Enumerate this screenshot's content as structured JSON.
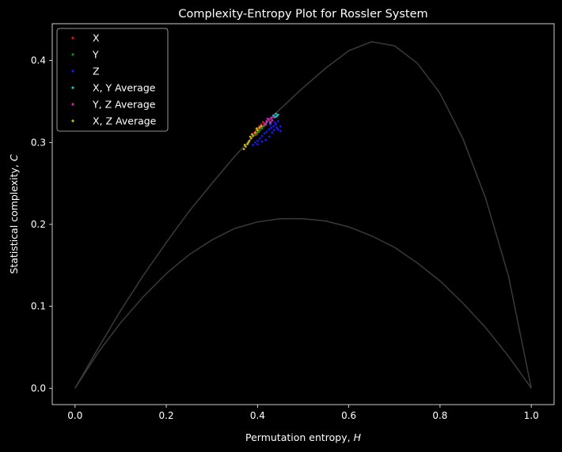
{
  "chart_data": {
    "type": "scatter",
    "title": "Complexity-Entropy Plot for Rossler System",
    "xlabel": "Permutation entropy, H",
    "xlabel_main": "Permutation entropy, ",
    "xlabel_var": "H",
    "ylabel": "Statistical complexity, C",
    "ylabel_main": "Statistical complexity, ",
    "ylabel_var": "C",
    "xlim": [
      -0.05,
      1.05
    ],
    "ylim": [
      -0.02,
      0.445
    ],
    "xticks": [
      0.0,
      0.2,
      0.4,
      0.6,
      0.8,
      1.0
    ],
    "xtick_labels": [
      "0.0",
      "0.2",
      "0.4",
      "0.6",
      "0.8",
      "1.0"
    ],
    "yticks": [
      0.0,
      0.1,
      0.2,
      0.3,
      0.4
    ],
    "ytick_labels": [
      "0.0",
      "0.1",
      "0.2",
      "0.3",
      "0.4"
    ],
    "grid": false,
    "legend_position": "top-left",
    "background": "#000000",
    "bound_color": "#3a3a3a",
    "bounds": {
      "upper": [
        [
          0,
          0
        ],
        [
          0.05,
          0.048
        ],
        [
          0.1,
          0.095
        ],
        [
          0.15,
          0.138
        ],
        [
          0.2,
          0.178
        ],
        [
          0.25,
          0.216
        ],
        [
          0.3,
          0.25
        ],
        [
          0.35,
          0.283
        ],
        [
          0.4,
          0.313
        ],
        [
          0.45,
          0.341
        ],
        [
          0.5,
          0.367
        ],
        [
          0.55,
          0.391
        ],
        [
          0.6,
          0.412
        ],
        [
          0.65,
          0.423
        ],
        [
          0.7,
          0.418
        ],
        [
          0.75,
          0.397
        ],
        [
          0.8,
          0.36
        ],
        [
          0.85,
          0.305
        ],
        [
          0.9,
          0.232
        ],
        [
          0.95,
          0.137
        ],
        [
          1.0,
          0
        ]
      ],
      "lower": [
        [
          0,
          0
        ],
        [
          0.05,
          0.043
        ],
        [
          0.1,
          0.08
        ],
        [
          0.15,
          0.112
        ],
        [
          0.2,
          0.14
        ],
        [
          0.25,
          0.163
        ],
        [
          0.3,
          0.181
        ],
        [
          0.35,
          0.195
        ],
        [
          0.4,
          0.203
        ],
        [
          0.45,
          0.207
        ],
        [
          0.5,
          0.207
        ],
        [
          0.55,
          0.204
        ],
        [
          0.6,
          0.197
        ],
        [
          0.65,
          0.186
        ],
        [
          0.7,
          0.172
        ],
        [
          0.75,
          0.153
        ],
        [
          0.8,
          0.131
        ],
        [
          0.85,
          0.104
        ],
        [
          0.9,
          0.074
        ],
        [
          0.95,
          0.039
        ],
        [
          1.0,
          0
        ]
      ]
    },
    "series": [
      {
        "name": "X",
        "color": "#e01010",
        "points": [
          [
            0.392,
            0.311
          ],
          [
            0.396,
            0.314
          ],
          [
            0.4,
            0.317
          ],
          [
            0.404,
            0.32
          ],
          [
            0.408,
            0.322
          ],
          [
            0.412,
            0.325
          ],
          [
            0.398,
            0.31
          ],
          [
            0.403,
            0.313
          ],
          [
            0.41,
            0.318
          ],
          [
            0.415,
            0.321
          ]
        ]
      },
      {
        "name": "Y",
        "color": "#109010",
        "points": [
          [
            0.395,
            0.309
          ],
          [
            0.4,
            0.312
          ],
          [
            0.405,
            0.315
          ],
          [
            0.41,
            0.317
          ],
          [
            0.414,
            0.32
          ],
          [
            0.418,
            0.322
          ],
          [
            0.402,
            0.314
          ],
          [
            0.408,
            0.319
          ]
        ]
      },
      {
        "name": "Z",
        "color": "#1818f0",
        "points": [
          [
            0.39,
            0.297
          ],
          [
            0.395,
            0.3
          ],
          [
            0.4,
            0.302
          ],
          [
            0.405,
            0.305
          ],
          [
            0.41,
            0.308
          ],
          [
            0.415,
            0.311
          ],
          [
            0.42,
            0.313
          ],
          [
            0.425,
            0.316
          ],
          [
            0.43,
            0.318
          ],
          [
            0.435,
            0.32
          ],
          [
            0.44,
            0.322
          ],
          [
            0.445,
            0.316
          ],
          [
            0.45,
            0.314
          ],
          [
            0.438,
            0.324
          ],
          [
            0.432,
            0.312
          ],
          [
            0.426,
            0.307
          ],
          [
            0.418,
            0.303
          ],
          [
            0.41,
            0.301
          ],
          [
            0.4,
            0.298
          ],
          [
            0.445,
            0.326
          ],
          [
            0.436,
            0.315
          ],
          [
            0.428,
            0.322
          ],
          [
            0.45,
            0.32
          ],
          [
            0.442,
            0.318
          ]
        ]
      },
      {
        "name": "X, Y Average",
        "color": "#20c0c0",
        "points": [
          [
            0.42,
            0.325
          ],
          [
            0.425,
            0.328
          ],
          [
            0.43,
            0.33
          ],
          [
            0.435,
            0.333
          ],
          [
            0.44,
            0.335
          ],
          [
            0.445,
            0.334
          ],
          [
            0.432,
            0.327
          ],
          [
            0.438,
            0.331
          ],
          [
            0.428,
            0.324
          ],
          [
            0.442,
            0.332
          ]
        ]
      },
      {
        "name": "Y, Z Average",
        "color": "#d020b0",
        "points": [
          [
            0.41,
            0.32
          ],
          [
            0.415,
            0.323
          ],
          [
            0.42,
            0.326
          ],
          [
            0.425,
            0.328
          ],
          [
            0.43,
            0.33
          ],
          [
            0.435,
            0.331
          ],
          [
            0.418,
            0.322
          ],
          [
            0.428,
            0.325
          ],
          [
            0.422,
            0.329
          ],
          [
            0.432,
            0.327
          ]
        ]
      },
      {
        "name": "X, Z Average",
        "color": "#c8b020",
        "points": [
          [
            0.37,
            0.292
          ],
          [
            0.374,
            0.295
          ],
          [
            0.378,
            0.298
          ],
          [
            0.382,
            0.302
          ],
          [
            0.386,
            0.305
          ],
          [
            0.39,
            0.308
          ],
          [
            0.395,
            0.312
          ],
          [
            0.4,
            0.315
          ],
          [
            0.404,
            0.318
          ],
          [
            0.408,
            0.32
          ],
          [
            0.372,
            0.297
          ],
          [
            0.38,
            0.3
          ],
          [
            0.388,
            0.31
          ],
          [
            0.398,
            0.317
          ],
          [
            0.384,
            0.307
          ]
        ]
      }
    ]
  }
}
